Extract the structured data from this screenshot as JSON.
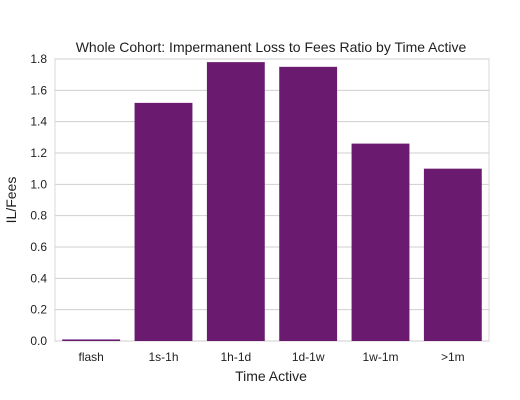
{
  "chart_data": {
    "type": "bar",
    "title": "Whole Cohort: Impermanent Loss to Fees Ratio by Time Active",
    "xlabel": "Time Active",
    "ylabel": "IL/Fees",
    "categories": [
      "flash",
      "1s-1h",
      "1h-1d",
      "1d-1w",
      "1w-1m",
      ">1m"
    ],
    "values": [
      0.01,
      1.52,
      1.78,
      1.75,
      1.26,
      1.1
    ],
    "ylim": [
      0,
      1.8
    ],
    "yticks": [
      "0.0",
      "0.2",
      "0.4",
      "0.6",
      "0.8",
      "1.0",
      "1.2",
      "1.4",
      "1.6",
      "1.8"
    ],
    "grid": "horizontal",
    "bar_color": "#6a1b6f",
    "grid_color": "#cfcfcf",
    "axes_color": "#d9d9d9"
  }
}
